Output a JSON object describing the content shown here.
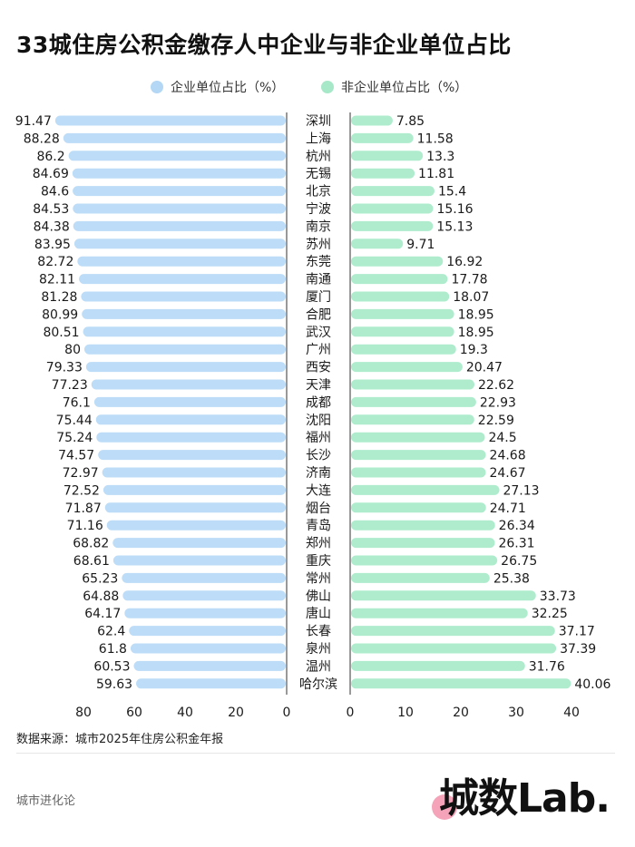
{
  "title": "33城住房公积金缴存人中企业与非企业单位占比",
  "legend": {
    "left_label": "企业单位占比（%）",
    "right_label": "非企业单位占比（%）"
  },
  "colors": {
    "left_bar": "#bcdcf7",
    "left_dot": "#b3d7f5",
    "right_bar": "#aeeccd",
    "right_dot": "#a6e8c8",
    "bar_outline": "#ffffff"
  },
  "source": "数据来源：城市2025年住房公积金年报",
  "footer_brand": "城市进化论",
  "logo_text": "城数Lab.",
  "chart_data": [
    {
      "type": "bar",
      "orientation": "horizontal",
      "direction": "reversed",
      "series": [
        {
          "name": "企业单位占比（%）",
          "values": [
            91.47,
            88.28,
            86.2,
            84.69,
            84.6,
            84.53,
            84.38,
            83.95,
            82.72,
            82.11,
            81.28,
            80.99,
            80.51,
            80,
            79.33,
            77.23,
            76.1,
            75.44,
            75.24,
            74.57,
            72.97,
            72.52,
            71.87,
            71.16,
            68.82,
            68.61,
            65.23,
            64.88,
            64.17,
            62.4,
            61.8,
            60.53,
            59.63
          ]
        }
      ],
      "value_labels": [
        "91.47",
        "88.28",
        "86.2",
        "84.69",
        "84.6",
        "84.53",
        "84.38",
        "83.95",
        "82.72",
        "82.11",
        "81.28",
        "80.99",
        "80.51",
        "80",
        "79.33",
        "77.23",
        "76.1",
        "75.44",
        "75.24",
        "74.57",
        "72.97",
        "72.52",
        "71.87",
        "71.16",
        "68.82",
        "68.61",
        "65.23",
        "64.88",
        "64.17",
        "62.4",
        "61.8",
        "60.53",
        "59.63"
      ],
      "xlim": [
        0,
        90
      ],
      "xticks": [
        80,
        60,
        40,
        20,
        0
      ],
      "grid": false
    },
    {
      "type": "bar",
      "orientation": "horizontal",
      "categories": [
        "深圳",
        "上海",
        "杭州",
        "无锡",
        "北京",
        "宁波",
        "南京",
        "苏州",
        "东莞",
        "南通",
        "厦门",
        "合肥",
        "武汉",
        "广州",
        "西安",
        "天津",
        "成都",
        "沈阳",
        "福州",
        "长沙",
        "济南",
        "大连",
        "烟台",
        "青岛",
        "郑州",
        "重庆",
        "常州",
        "佛山",
        "唐山",
        "长春",
        "泉州",
        "温州",
        "哈尔滨"
      ],
      "series": [
        {
          "name": "非企业单位占比（%）",
          "values": [
            7.85,
            11.58,
            13.3,
            11.81,
            15.4,
            15.16,
            15.13,
            9.71,
            16.92,
            17.78,
            18.07,
            18.95,
            18.95,
            19.3,
            20.47,
            22.62,
            22.93,
            22.59,
            24.5,
            24.68,
            24.67,
            27.13,
            24.71,
            26.34,
            26.31,
            26.75,
            25.38,
            33.73,
            32.25,
            37.17,
            37.39,
            31.76,
            40.06
          ]
        }
      ],
      "value_labels": [
        "7.85",
        "11.58",
        "13.3",
        "11.81",
        "15.4",
        "15.16",
        "15.13",
        "9.71",
        "16.92",
        "17.78",
        "18.07",
        "18.95",
        "18.95",
        "19.3",
        "20.47",
        "22.62",
        "22.93",
        "22.59",
        "24.5",
        "24.68",
        "24.67",
        "27.13",
        "24.71",
        "26.34",
        "26.31",
        "26.75",
        "25.38",
        "33.73",
        "32.25",
        "37.17",
        "37.39",
        "31.76",
        "40.06"
      ],
      "xlim": [
        0,
        40
      ],
      "xticks": [
        0,
        10,
        20,
        30,
        40
      ],
      "grid": false
    }
  ]
}
